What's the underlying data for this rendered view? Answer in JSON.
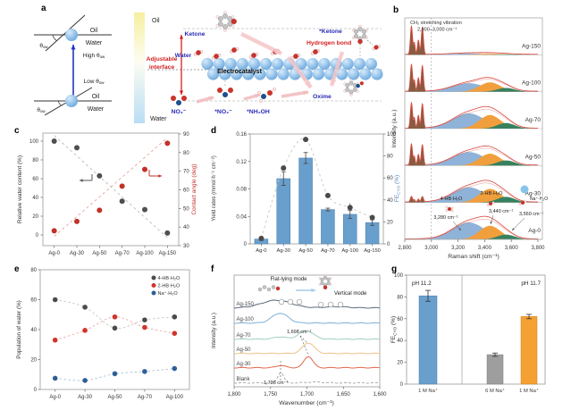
{
  "figure": {
    "panel_labels": [
      "a",
      "b",
      "c",
      "d",
      "e",
      "f",
      "g"
    ],
    "background": "#ffffff"
  },
  "panel_a": {
    "left": {
      "oil": "Oil",
      "water": "Water",
      "theta": "θ",
      "theta_sub": "ow",
      "high_prefix": "High θ",
      "low_prefix": "Low θ"
    },
    "right": {
      "oil": "Oil",
      "water_bottom": "Water",
      "adjustable_1": "Adjustable",
      "adjustable_2": "interface",
      "water": "Water",
      "ketone": "Ketone",
      "ketone_ads": "*Ketone",
      "hbond": "Hydrogen bond",
      "electrocatalyst": "Electrocatalyst",
      "no2": "NO₂⁻",
      "no2_ads": "*NO₂⁻",
      "nh2oh_ads": "*NH₂OH",
      "oxime": "Oxime"
    }
  },
  "chart_data": [
    {
      "panel": "b",
      "type": "line",
      "title_note": "CH₂ stretching vibration",
      "title_note2": "2,800–3,000 cm⁻¹",
      "xlabel": "Raman shift (cm⁻¹)",
      "ylabel": "Intensity (a.u.)",
      "x_ticks": [
        "2,800",
        "3,000",
        "3,200",
        "3,400",
        "3,600",
        "3,800"
      ],
      "x_range": [
        2800,
        3800
      ],
      "bands": [
        {
          "name": "4-HB·H₂O",
          "center_cm": 3280,
          "sigma_cm": 120,
          "color": "#8fb3d8"
        },
        {
          "name": "2-HB·H₂O",
          "center_cm": 3440,
          "sigma_cm": 80,
          "color": "#f19f3d"
        },
        {
          "name": "Na⁺·H₂O",
          "center_cm": 3560,
          "sigma_cm": 67,
          "color": "#37815f"
        }
      ],
      "series": [
        {
          "name": "Ag-150",
          "ch": 1.0,
          "amps": [
            0.08,
            0.06,
            0.03
          ]
        },
        {
          "name": "Ag-100",
          "ch": 0.95,
          "amps": [
            0.5,
            0.55,
            0.22
          ]
        },
        {
          "name": "Ag-70",
          "ch": 0.9,
          "amps": [
            0.9,
            0.8,
            0.33
          ]
        },
        {
          "name": "Ag-50",
          "ch": 0.75,
          "amps": [
            0.8,
            0.7,
            0.3
          ]
        },
        {
          "name": "Ag-30",
          "ch": 0.2,
          "amps": [
            0.9,
            0.8,
            0.33
          ]
        },
        {
          "name": "Ag-0",
          "ch": 0.0,
          "amps": [
            1.0,
            0.8,
            0.28
          ]
        }
      ],
      "annotations": {
        "hb4_label": "4-HB·H₂O",
        "hb4_peak": "3,280 cm⁻¹",
        "hb2_label": "2-HB·H₂O",
        "hb2_peak": "3,440 cm⁻¹",
        "na_label": "Na⁺·H₂O",
        "na_peak": "3,560 cm⁻¹"
      },
      "envelope_color": "#d6453a",
      "ch_color": "#7b4a2e"
    },
    {
      "panel": "c",
      "type": "scatter-dual",
      "categories": [
        "Ag-0",
        "Ag-30",
        "Ag-50",
        "Ag-70",
        "Ag-100",
        "Ag-150"
      ],
      "left": {
        "label": "Relative water content (%)",
        "ticks": [
          0,
          20,
          40,
          60,
          80,
          100
        ],
        "values": [
          100,
          93,
          63,
          36,
          27,
          2
        ],
        "color": "#4f4f4f"
      },
      "right": {
        "label": "Contact angle (deg)",
        "ticks": [
          30,
          40,
          50,
          60,
          70,
          80,
          90
        ],
        "values": [
          38,
          43,
          49,
          62,
          71,
          85
        ],
        "color": "#c23128"
      }
    },
    {
      "panel": "d",
      "type": "bar-scatter",
      "categories": [
        "Ag-0",
        "Ag-30",
        "Ag-50",
        "Ag-70",
        "Ag-100",
        "Ag-150"
      ],
      "bars": {
        "label": "Yield rates (mmol h⁻¹ cm⁻²)",
        "ticks": [
          "0",
          "0.04",
          "0.08",
          "0.12",
          "0.16"
        ],
        "tick_values": [
          0,
          0.04,
          0.08,
          0.12,
          0.16
        ],
        "values": [
          0.007,
          0.095,
          0.125,
          0.05,
          0.043,
          0.031
        ],
        "errors": [
          0.002,
          0.01,
          0.008,
          0.002,
          0.006,
          0.004
        ],
        "color": "#699fcd",
        "edge": "#4b7eae"
      },
      "dots": {
        "label_parts": [
          "FE",
          "CYO",
          " (%)"
        ],
        "ticks": [
          0,
          20,
          40,
          60,
          80,
          100
        ],
        "values": [
          5,
          69,
          95,
          44,
          33,
          24
        ],
        "errors": [
          1,
          2,
          2,
          2,
          4,
          2
        ],
        "color": "#4a4a4a",
        "label_color": "#5b8ab8"
      }
    },
    {
      "panel": "e",
      "type": "scatter",
      "categories": [
        "Ag-0",
        "Ag-30",
        "Ag-50",
        "Ag-70",
        "Ag-100"
      ],
      "ylabel": "Population of water (%)",
      "yticks": [
        0,
        20,
        40,
        60,
        80
      ],
      "series": [
        {
          "name": "4-HB·H₂O",
          "color": "#4a4a4a",
          "trend_color": "#c6c6c6",
          "values": [
            60,
            55,
            41,
            46.5,
            48.5
          ]
        },
        {
          "name": "2-HB·H₂O",
          "color": "#d0342c",
          "trend_color": "#efaca6",
          "values": [
            33,
            39.5,
            48.5,
            41.5,
            37.5
          ]
        },
        {
          "name": "Na⁺·H₂O",
          "color": "#2e5f96",
          "trend_color": "#aac2dd",
          "values": [
            7.5,
            6,
            10.5,
            12,
            14
          ]
        }
      ]
    },
    {
      "panel": "f",
      "type": "line-stacked",
      "xlabel": "Wavenumber (cm⁻¹)",
      "ylabel": "Intensity (a.u.)",
      "x_ticks": [
        "1,800",
        "1,750",
        "1,700",
        "1,650",
        "1,600"
      ],
      "x_range": [
        1800,
        1600
      ],
      "series": [
        {
          "name": "Ag-150",
          "color": "#5a6b7c",
          "peaks": [
            {
              "c": 1742,
              "a": 0.5,
              "w": 20
            },
            {
              "c": 1660,
              "a": 0.08,
              "w": 15
            }
          ]
        },
        {
          "name": "Ag-100",
          "color": "#7aaed6",
          "peaks": [
            {
              "c": 1737,
              "a": 0.65,
              "w": 11
            }
          ]
        },
        {
          "name": "Ag-70",
          "color": "#9fd0bd",
          "peaks": [
            {
              "c": 1701,
              "a": 0.55,
              "w": 10
            },
            {
              "c": 1737,
              "a": 0.15,
              "w": 8
            }
          ]
        },
        {
          "name": "Ag-50",
          "color": "#f0c089",
          "peaks": [
            {
              "c": 1698,
              "a": 0.7,
              "w": 8
            }
          ]
        },
        {
          "name": "Ag-30",
          "color": "#e2674a",
          "peaks": [
            {
              "c": 1698,
              "a": 0.75,
              "w": 6
            },
            {
              "c": 1736,
              "a": 0.15,
              "w": 6
            }
          ]
        },
        {
          "name": "Blank",
          "color": "#a9a9a9",
          "dashed": true,
          "peaks": [
            {
              "c": 1736,
              "a": 0.7,
              "w": 4
            },
            {
              "c": 1690,
              "a": 0.06,
              "w": 10
            }
          ]
        }
      ],
      "annotations": {
        "flat": "Flat-lying mode",
        "vertical": "Vertical mode",
        "peak_1698": "1,698 cm⁻¹",
        "peak_1736": "1,736 cm⁻¹"
      }
    },
    {
      "panel": "g",
      "type": "bar",
      "ylabel_parts": [
        "FE",
        "CYO",
        " (%)"
      ],
      "yticks": [
        0,
        20,
        40,
        60,
        80,
        100
      ],
      "groups": [
        {
          "title": "pH 11.2",
          "bars": [
            {
              "label": "1 M Na⁺",
              "value": 81,
              "error": 5,
              "color": "#699fcd",
              "edge": "#4b7eae"
            }
          ]
        },
        {
          "title": "pH 11.7",
          "bars": [
            {
              "label": "6 M Na⁺",
              "value": 27,
              "error": 1.5,
              "color": "#9e9e9e",
              "edge": "#7d7d7d"
            },
            {
              "label": "1 M Na⁺",
              "value": 62,
              "error": 2,
              "color": "#f5a033",
              "edge": "#d2820f"
            }
          ]
        }
      ]
    }
  ]
}
